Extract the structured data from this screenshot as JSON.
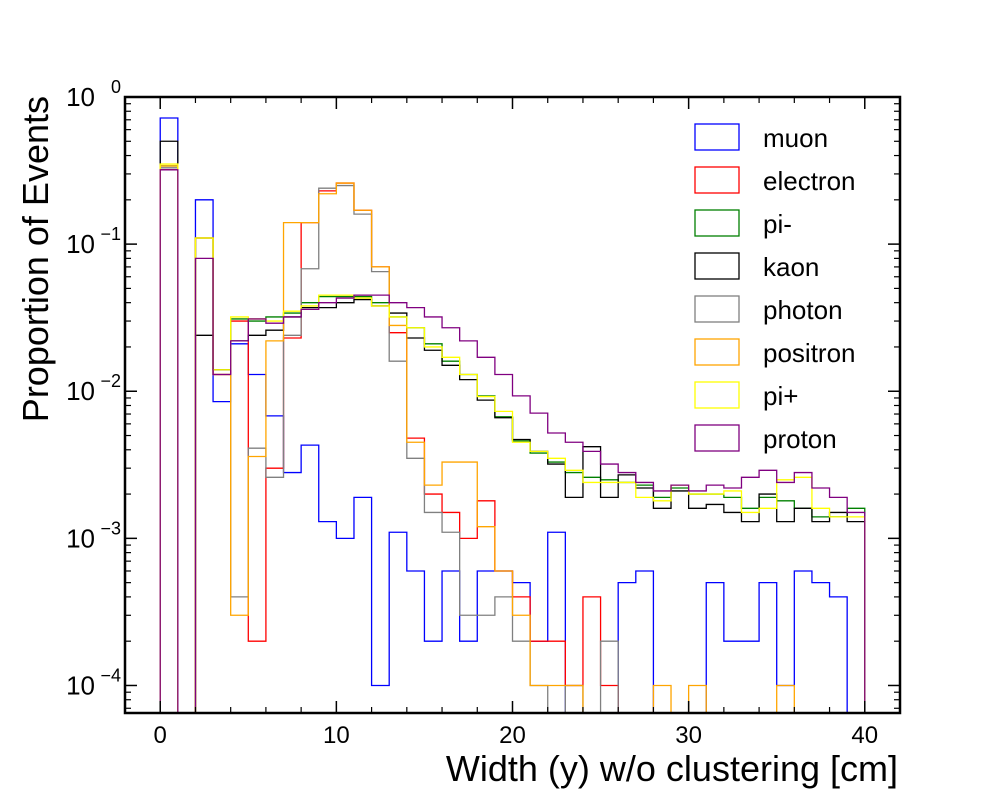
{
  "chart_data": {
    "type": "histogram",
    "xlabel": "Width (y) w/o clustering [cm]",
    "ylabel": "Proportion of Events",
    "xlim": [
      -2,
      42
    ],
    "ylim": [
      6.5e-05,
      1.0
    ],
    "yscale": "log",
    "legend_placement": "upper-right",
    "x_ticks": [
      0,
      10,
      20,
      30,
      40
    ],
    "x_tick_labels": [
      "0",
      "10",
      "20",
      "30",
      "40"
    ],
    "y_ticks": [
      0.0001,
      0.001,
      0.01,
      0.1,
      1
    ],
    "y_tick_labels": [
      {
        "base": "10",
        "exp": "−4"
      },
      {
        "base": "10",
        "exp": "−3"
      },
      {
        "base": "10",
        "exp": "−2"
      },
      {
        "base": "10",
        "exp": "−1"
      },
      {
        "base": "10",
        "exp": "0"
      }
    ],
    "bin_start": 0,
    "bin_width": 1,
    "series": [
      {
        "name": "muon",
        "color": "#0000ff",
        "values": [
          0.72,
          0,
          0.2,
          0.0085,
          0.021,
          0.013,
          0.0068,
          0.0028,
          0.0043,
          0.0013,
          0.001,
          0.0019,
          0.0001,
          0.0011,
          0.0006,
          0.0002,
          0.0006,
          0.0002,
          0.0006,
          0.0006,
          0.0005,
          0.0002,
          0.0011,
          0,
          0,
          0,
          0.0005,
          0.0006,
          0,
          0,
          0,
          0.0005,
          0.0002,
          0.0002,
          0.0005,
          0.0001,
          0.0006,
          0.0005,
          0.0004,
          0
        ]
      },
      {
        "name": "electron",
        "color": "#ff0000",
        "values": [
          0.32,
          0,
          0.11,
          0.013,
          0.03,
          0.0002,
          0.003,
          0.023,
          0.14,
          0.23,
          0.26,
          0.17,
          0.07,
          0.025,
          0.0048,
          0.002,
          0.0015,
          0.001,
          0.0018,
          0.0006,
          0.0004,
          0.0002,
          0.0002,
          0.0001,
          0.0004,
          0.0001,
          0,
          0,
          0,
          0,
          0,
          0,
          0,
          0,
          0,
          0,
          0,
          0,
          0,
          0
        ]
      },
      {
        "name": "pi-",
        "color": "#008000",
        "values": [
          0.34,
          0,
          0.11,
          0.014,
          0.031,
          0.03,
          0.032,
          0.034,
          0.04,
          0.044,
          0.044,
          0.044,
          0.04,
          0.032,
          0.027,
          0.021,
          0.016,
          0.013,
          0.0093,
          0.0067,
          0.0046,
          0.0038,
          0.0033,
          0.0028,
          0.0026,
          0.0025,
          0.0024,
          0.0023,
          0.0019,
          0.0022,
          0.002,
          0.002,
          0.0019,
          0.0016,
          0.0019,
          0.0018,
          0.0016,
          0.0014,
          0.0014,
          0.0016
        ]
      },
      {
        "name": "kaon",
        "color": "#000000",
        "values": [
          0.5,
          0,
          0.024,
          0.014,
          0.022,
          0.024,
          0.026,
          0.032,
          0.037,
          0.037,
          0.04,
          0.042,
          0.038,
          0.034,
          0.023,
          0.019,
          0.015,
          0.012,
          0.0087,
          0.0066,
          0.0047,
          0.0039,
          0.0032,
          0.0019,
          0.0042,
          0.0019,
          0.0027,
          0.0022,
          0.0016,
          0.0021,
          0.0016,
          0.0017,
          0.0015,
          0.0013,
          0.002,
          0.0013,
          0.0016,
          0.0013,
          0.0015,
          0.0013
        ]
      },
      {
        "name": "photon",
        "color": "#808080",
        "values": [
          0.33,
          0,
          0.11,
          0.013,
          0.0004,
          0.0041,
          0.0026,
          0.024,
          0.068,
          0.24,
          0.25,
          0.16,
          0.065,
          0.016,
          0.0035,
          0.0015,
          0.0011,
          0.0003,
          0.0003,
          0.0004,
          0.0002,
          0.0001,
          0,
          0.0001,
          0,
          0.0002,
          0,
          0,
          0,
          0,
          0,
          0,
          0,
          0,
          0,
          0,
          0,
          0,
          0,
          0
        ]
      },
      {
        "name": "positron",
        "color": "#ffa500",
        "values": [
          0.34,
          0,
          0.11,
          0.013,
          0.0003,
          0.0036,
          0.022,
          0.14,
          0.14,
          0.22,
          0.26,
          0.17,
          0.07,
          0.028,
          0.0045,
          0.0023,
          0.0033,
          0.0033,
          0.0012,
          0.0006,
          0.0003,
          0.0001,
          0.0001,
          0.0001,
          0,
          0,
          0,
          0,
          0.0001,
          0,
          0.0001,
          0,
          0,
          0,
          0,
          0.0001,
          0,
          0,
          0,
          0
        ]
      },
      {
        "name": "pi+",
        "color": "#ffff00",
        "values": [
          0.35,
          0,
          0.11,
          0.014,
          0.032,
          0.031,
          0.03,
          0.035,
          0.038,
          0.045,
          0.045,
          0.043,
          0.038,
          0.032,
          0.027,
          0.02,
          0.017,
          0.013,
          0.0092,
          0.0073,
          0.0045,
          0.0039,
          0.0035,
          0.0029,
          0.0024,
          0.0024,
          0.0024,
          0.0019,
          0.0018,
          0.0023,
          0.002,
          0.002,
          0.0021,
          0.0015,
          0.0016,
          0.0025,
          0.0026,
          0.0016,
          0.0014,
          0.0014
        ]
      },
      {
        "name": "proton",
        "color": "#800080",
        "values": [
          0.32,
          0,
          0.08,
          0.013,
          0.022,
          0.031,
          0.029,
          0.032,
          0.036,
          0.04,
          0.043,
          0.045,
          0.045,
          0.04,
          0.037,
          0.032,
          0.027,
          0.022,
          0.017,
          0.013,
          0.0093,
          0.0071,
          0.0052,
          0.0045,
          0.0039,
          0.0032,
          0.0028,
          0.0024,
          0.0021,
          0.0023,
          0.0021,
          0.0023,
          0.0022,
          0.0026,
          0.0029,
          0.0024,
          0.0028,
          0.0022,
          0.0019,
          0.0015
        ]
      }
    ]
  }
}
